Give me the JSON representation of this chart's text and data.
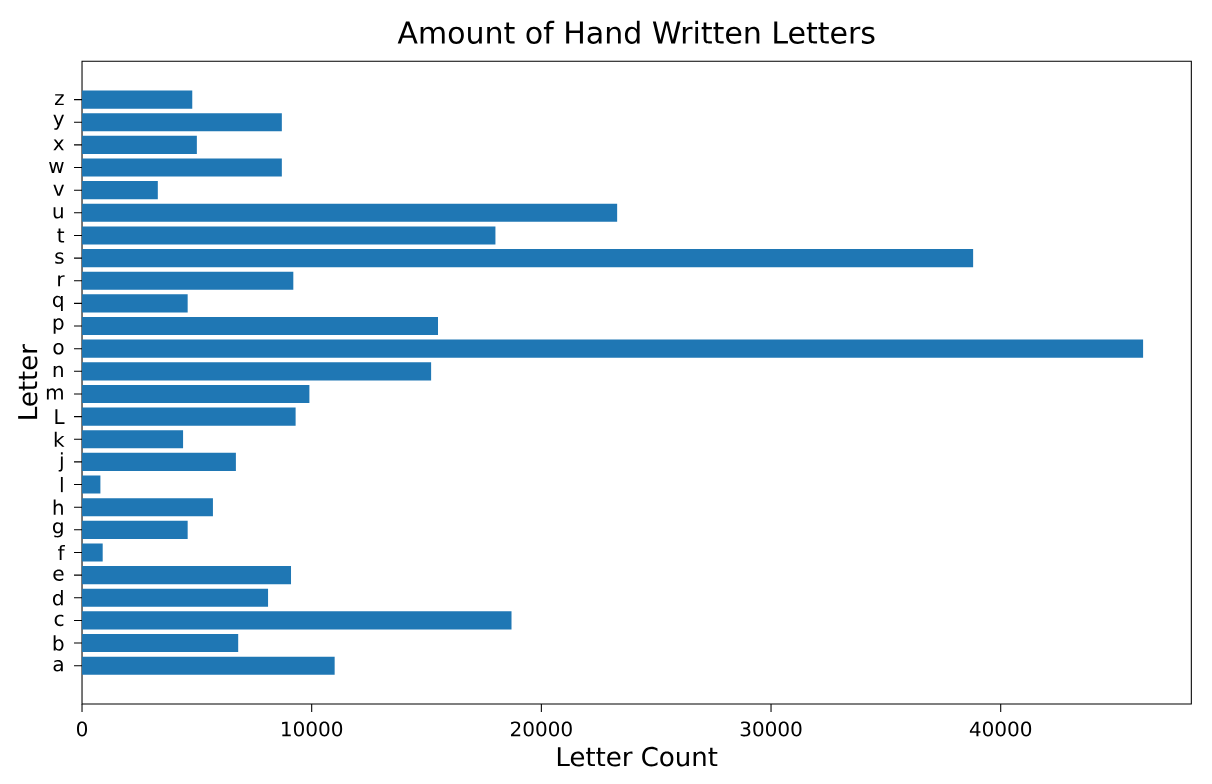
{
  "chart_data": {
    "type": "bar",
    "orientation": "horizontal",
    "title": "Amount of Hand Written Letters",
    "xlabel": "Letter Count",
    "ylabel": "Letter",
    "categories": [
      "z",
      "y",
      "x",
      "w",
      "v",
      "u",
      "t",
      "s",
      "r",
      "q",
      "p",
      "o",
      "n",
      "m",
      "L",
      "k",
      "j",
      "l",
      "h",
      "g",
      "f",
      "e",
      "d",
      "c",
      "b",
      "a"
    ],
    "values": [
      4800,
      8700,
      5000,
      8700,
      3300,
      23300,
      18000,
      38800,
      9200,
      4600,
      15500,
      46200,
      15200,
      9900,
      9300,
      4400,
      6700,
      800,
      5700,
      4600,
      900,
      9100,
      8100,
      18700,
      6800,
      11000
    ],
    "color": "#1f77b4",
    "xlim": [
      0,
      48300
    ],
    "xticks": [
      0,
      10000,
      20000,
      30000,
      40000
    ],
    "grid": false
  }
}
